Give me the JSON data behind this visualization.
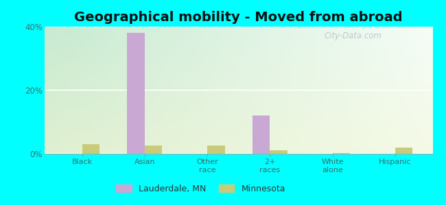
{
  "title": "Geographical mobility - Moved from abroad",
  "categories": [
    "Black",
    "Asian",
    "Other\nrace",
    "2+\nraces",
    "White\nalone",
    "Hispanic"
  ],
  "lauderdale_values": [
    0.0,
    38.0,
    0.0,
    12.0,
    0.0,
    0.0
  ],
  "minnesota_values": [
    3.0,
    2.5,
    2.5,
    1.0,
    0.3,
    2.0
  ],
  "lauderdale_color": "#c9a8d4",
  "minnesota_color": "#c8cc7a",
  "ylim": [
    0,
    40
  ],
  "yticks": [
    0,
    20,
    40
  ],
  "ytick_labels": [
    "0%",
    "20%",
    "40%"
  ],
  "outer_bg": "#00ffff",
  "title_fontsize": 14,
  "bar_width": 0.28,
  "legend_labels": [
    "Lauderdale, MN",
    "Minnesota"
  ],
  "watermark": "City-Data.com"
}
